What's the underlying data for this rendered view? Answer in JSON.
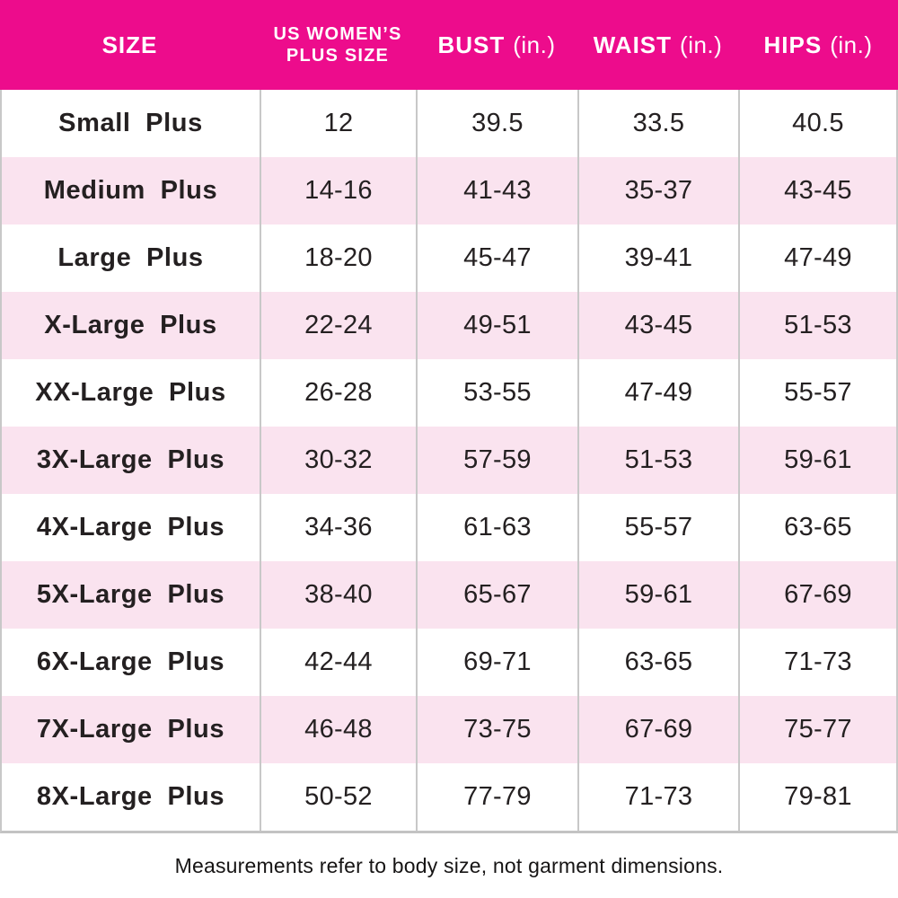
{
  "theme": {
    "header_bg": "#ED0C8C",
    "row_bg": "#FFFFFF",
    "row_alt_bg": "#FAE3EF",
    "grid_line": "#C8C8C8",
    "text_color": "#242021",
    "header_text_color": "#FFFFFF"
  },
  "chart_data": {
    "type": "table",
    "columns": [
      {
        "label": "SIZE",
        "unit": ""
      },
      {
        "label": "US WOMEN’S",
        "label2": "PLUS SIZE",
        "unit": ""
      },
      {
        "label": "BUST",
        "unit": "(in.)"
      },
      {
        "label": "WAIST",
        "unit": "(in.)"
      },
      {
        "label": "HIPS",
        "unit": "(in.)"
      }
    ],
    "row_keys": [
      "size",
      "plus_size",
      "bust",
      "waist",
      "hips"
    ],
    "rows": [
      {
        "size": "Small Plus",
        "plus_size": "12",
        "bust": "39.5",
        "waist": "33.5",
        "hips": "40.5"
      },
      {
        "size": "Medium Plus",
        "plus_size": "14-16",
        "bust": "41-43",
        "waist": "35-37",
        "hips": "43-45"
      },
      {
        "size": "Large Plus",
        "plus_size": "18-20",
        "bust": "45-47",
        "waist": "39-41",
        "hips": "47-49"
      },
      {
        "size": "X-Large Plus",
        "plus_size": "22-24",
        "bust": "49-51",
        "waist": "43-45",
        "hips": "51-53"
      },
      {
        "size": "XX-Large Plus",
        "plus_size": "26-28",
        "bust": "53-55",
        "waist": "47-49",
        "hips": "55-57"
      },
      {
        "size": "3X-Large Plus",
        "plus_size": "30-32",
        "bust": "57-59",
        "waist": "51-53",
        "hips": "59-61"
      },
      {
        "size": "4X-Large Plus",
        "plus_size": "34-36",
        "bust": "61-63",
        "waist": "55-57",
        "hips": "63-65"
      },
      {
        "size": "5X-Large Plus",
        "plus_size": "38-40",
        "bust": "65-67",
        "waist": "59-61",
        "hips": "67-69"
      },
      {
        "size": "6X-Large Plus",
        "plus_size": "42-44",
        "bust": "69-71",
        "waist": "63-65",
        "hips": "71-73"
      },
      {
        "size": "7X-Large Plus",
        "plus_size": "46-48",
        "bust": "73-75",
        "waist": "67-69",
        "hips": "75-77"
      },
      {
        "size": "8X-Large Plus",
        "plus_size": "50-52",
        "bust": "77-79",
        "waist": "71-73",
        "hips": "79-81"
      }
    ]
  },
  "footer": {
    "note": "Measurements refer to body size, not garment dimensions."
  }
}
